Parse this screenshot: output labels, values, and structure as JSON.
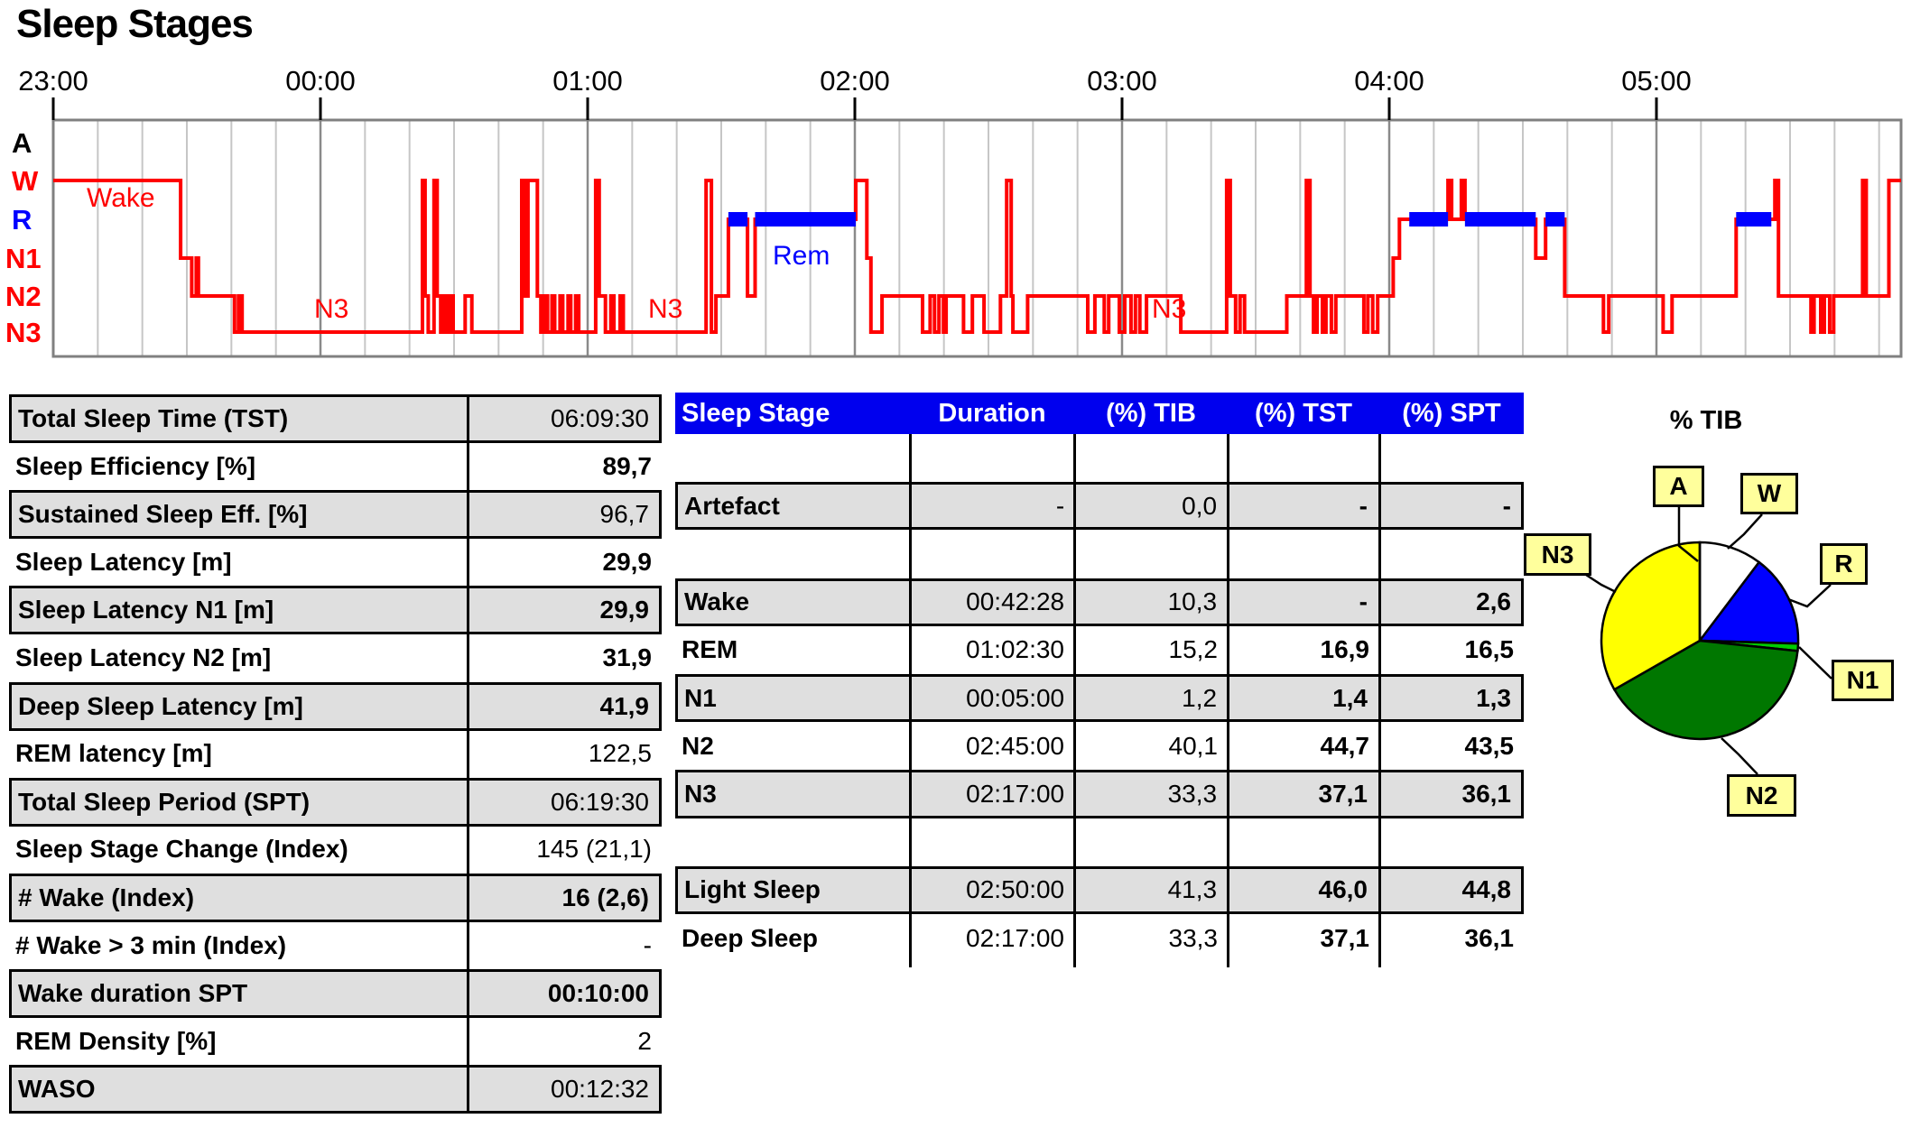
{
  "title": "Sleep Stages",
  "chart_data": [
    {
      "type": "line",
      "subtype": "hypnogram-step",
      "title": "Sleep Stages",
      "xlabel": "time",
      "x_unit": "minutes from 23:00",
      "x_range_min": [
        0,
        415
      ],
      "hour_ticks": [
        "23:00",
        "00:00",
        "01:00",
        "02:00",
        "03:00",
        "04:00",
        "05:00"
      ],
      "stage_axis": [
        {
          "label": "A",
          "color": "#000000"
        },
        {
          "label": "W",
          "color": "#FF0000"
        },
        {
          "label": "R",
          "color": "#0000FF"
        },
        {
          "label": "N1",
          "color": "#FF0000"
        },
        {
          "label": "N2",
          "color": "#FF0000"
        },
        {
          "label": "N3",
          "color": "#FF0000"
        }
      ],
      "trace_color": "#FF0000",
      "rem_color": "#0000FF",
      "grid_minor_min": 10,
      "series": [
        [
          0,
          "W"
        ],
        [
          28.6,
          "N1"
        ],
        [
          31.1,
          "N2"
        ],
        [
          32.1,
          "N1"
        ],
        [
          32.6,
          "N2"
        ],
        [
          40.7,
          "N3"
        ],
        [
          41.6,
          "N2"
        ],
        [
          42.4,
          "N3"
        ],
        [
          82.9,
          "W"
        ],
        [
          83.5,
          "N2"
        ],
        [
          84.2,
          "N3"
        ],
        [
          85.5,
          "W"
        ],
        [
          86.2,
          "N2"
        ],
        [
          87.0,
          "N3"
        ],
        [
          87.6,
          "N2"
        ],
        [
          88.4,
          "N3"
        ],
        [
          89.0,
          "N2"
        ],
        [
          89.8,
          "N3"
        ],
        [
          92.5,
          "N2"
        ],
        [
          94.0,
          "N3"
        ],
        [
          105.2,
          "W"
        ],
        [
          105.8,
          "N2"
        ],
        [
          106.6,
          "W"
        ],
        [
          108.7,
          "N2"
        ],
        [
          109.5,
          "N3"
        ],
        [
          110.3,
          "N2"
        ],
        [
          111.0,
          "N3"
        ],
        [
          112.0,
          "N2"
        ],
        [
          112.6,
          "N3"
        ],
        [
          113.8,
          "N2"
        ],
        [
          114.4,
          "N3"
        ],
        [
          115.6,
          "N2"
        ],
        [
          116.2,
          "N3"
        ],
        [
          117.3,
          "N2"
        ],
        [
          118.0,
          "N3"
        ],
        [
          121.8,
          "W"
        ],
        [
          122.6,
          "N2"
        ],
        [
          124.0,
          "N3"
        ],
        [
          125.2,
          "N2"
        ],
        [
          125.9,
          "N3"
        ],
        [
          127.3,
          "N2"
        ],
        [
          128.0,
          "N3"
        ],
        [
          146.6,
          "W"
        ],
        [
          147.8,
          "N3"
        ],
        [
          148.8,
          "N2"
        ],
        [
          151.6,
          "R"
        ],
        [
          155.9,
          "N2"
        ],
        [
          157.6,
          "R"
        ],
        [
          180.2,
          "W"
        ],
        [
          182.7,
          "N1"
        ],
        [
          183.6,
          "N3"
        ],
        [
          186.1,
          "N2"
        ],
        [
          195.2,
          "N3"
        ],
        [
          196.9,
          "N2"
        ],
        [
          197.9,
          "N3"
        ],
        [
          198.9,
          "N2"
        ],
        [
          199.9,
          "N3"
        ],
        [
          200.5,
          "N2"
        ],
        [
          204.4,
          "N3"
        ],
        [
          206.4,
          "N2"
        ],
        [
          209.0,
          "N3"
        ],
        [
          212.7,
          "N2"
        ],
        [
          214.1,
          "W"
        ],
        [
          215.1,
          "N2"
        ],
        [
          215.5,
          "N3"
        ],
        [
          218.8,
          "N2"
        ],
        [
          232.3,
          "N3"
        ],
        [
          233.9,
          "N2"
        ],
        [
          236.0,
          "N3"
        ],
        [
          237.0,
          "N2"
        ],
        [
          239.4,
          "N3"
        ],
        [
          240.6,
          "N2"
        ],
        [
          242.0,
          "N3"
        ],
        [
          243.0,
          "N2"
        ],
        [
          244.0,
          "N3"
        ],
        [
          245.5,
          "N2"
        ],
        [
          253.2,
          "N3"
        ],
        [
          263.5,
          "W"
        ],
        [
          264.3,
          "N2"
        ],
        [
          265.5,
          "N3"
        ],
        [
          266.5,
          "N2"
        ],
        [
          267.5,
          "N3"
        ],
        [
          277.0,
          "N2"
        ],
        [
          281.4,
          "W"
        ],
        [
          282.2,
          "N2"
        ],
        [
          283.0,
          "N3"
        ],
        [
          283.8,
          "N2"
        ],
        [
          285.0,
          "N3"
        ],
        [
          285.8,
          "N2"
        ],
        [
          287.0,
          "N3"
        ],
        [
          288.0,
          "N2"
        ],
        [
          294.3,
          "N3"
        ],
        [
          295.2,
          "N2"
        ],
        [
          296.3,
          "N3"
        ],
        [
          297.4,
          "N2"
        ],
        [
          300.9,
          "N1"
        ],
        [
          302.3,
          "R"
        ],
        [
          313.2,
          "W"
        ],
        [
          314.0,
          "R"
        ],
        [
          316.2,
          "W"
        ],
        [
          317.0,
          "R"
        ],
        [
          332.9,
          "N1"
        ],
        [
          335.1,
          "R"
        ],
        [
          339.4,
          "N2"
        ],
        [
          348.1,
          "N3"
        ],
        [
          349.3,
          "N2"
        ],
        [
          361.5,
          "N3"
        ],
        [
          363.5,
          "N2"
        ],
        [
          377.9,
          "R"
        ],
        [
          386.6,
          "W"
        ],
        [
          387.4,
          "N2"
        ],
        [
          394.7,
          "N3"
        ],
        [
          395.4,
          "N2"
        ],
        [
          396.9,
          "N3"
        ],
        [
          397.7,
          "N2"
        ],
        [
          398.9,
          "N3"
        ],
        [
          399.8,
          "N2"
        ],
        [
          406.3,
          "W"
        ],
        [
          407.1,
          "N2"
        ],
        [
          412.2,
          "W"
        ]
      ],
      "rem_bars_min": [
        [
          151.6,
          155.9
        ],
        [
          157.6,
          180.2
        ],
        [
          304.5,
          313.2
        ],
        [
          317.0,
          332.9
        ],
        [
          335.1,
          339.4
        ],
        [
          377.9,
          385.8
        ]
      ],
      "annotations": [
        {
          "text": "Wake",
          "color": "#FF0000",
          "x": 96,
          "y": 229
        },
        {
          "text": "N3",
          "color": "#FF0000",
          "x": 348,
          "y": 352
        },
        {
          "text": "Rem",
          "color": "#0000FF",
          "x": 856,
          "y": 293
        },
        {
          "text": "N3",
          "color": "#FF0000",
          "x": 718,
          "y": 352
        },
        {
          "text": "N3",
          "color": "#FF0000",
          "x": 1276,
          "y": 352
        }
      ]
    },
    {
      "type": "pie",
      "title": "% TIB",
      "labels": [
        "A",
        "W",
        "R",
        "N1",
        "N2",
        "N3"
      ],
      "values": [
        0,
        10.3,
        15.2,
        1.2,
        40.1,
        33.3
      ],
      "colors": [
        "#FFFFFF",
        "#FFFFFF",
        "#0000FF",
        "#00CC00",
        "#007700",
        "#FFFF00"
      ],
      "start_angle_deg_from_north": 0,
      "direction": "clockwise",
      "callout_box_color": "#FFFF9C"
    }
  ],
  "summary_table": {
    "rows": [
      {
        "label": "Total Sleep Time (TST)",
        "value": "06:09:30",
        "bold": false,
        "shaded": true
      },
      {
        "label": "Sleep Efficiency [%]",
        "value": "89,7",
        "bold": true,
        "shaded": false
      },
      {
        "label": "Sustained Sleep Eff. [%]",
        "value": "96,7",
        "bold": false,
        "shaded": true
      },
      {
        "label": "Sleep Latency [m]",
        "value": "29,9",
        "bold": true,
        "shaded": false
      },
      {
        "label": "Sleep Latency N1 [m]",
        "value": "29,9",
        "bold": true,
        "shaded": true
      },
      {
        "label": "Sleep Latency N2 [m]",
        "value": "31,9",
        "bold": true,
        "shaded": false
      },
      {
        "label": "Deep Sleep Latency [m]",
        "value": "41,9",
        "bold": true,
        "shaded": true
      },
      {
        "label": "REM latency [m]",
        "value": "122,5",
        "bold": false,
        "shaded": false
      },
      {
        "label": "Total Sleep Period (SPT)",
        "value": "06:19:30",
        "bold": false,
        "shaded": true
      },
      {
        "label": "Sleep Stage Change (Index)",
        "value": "145 (21,1)",
        "bold": false,
        "shaded": false
      },
      {
        "label": "# Wake (Index)",
        "value": "16 (2,6)",
        "bold": true,
        "shaded": true
      },
      {
        "label": "# Wake > 3 min (Index)",
        "value": "-",
        "bold": false,
        "shaded": false
      },
      {
        "label": "Wake duration SPT",
        "value": "00:10:00",
        "bold": true,
        "shaded": true
      },
      {
        "label": "REM Density [%]",
        "value": "2",
        "bold": false,
        "shaded": false
      },
      {
        "label": "WASO",
        "value": "00:12:32",
        "bold": false,
        "shaded": true
      }
    ]
  },
  "stage_table": {
    "header_bg": "#0000EE",
    "headers": [
      "Sleep Stage",
      "Duration",
      "(%) TIB",
      "(%) TST",
      "(%) SPT"
    ],
    "rows": [
      {
        "empty": true
      },
      {
        "name": "Artefact",
        "duration": "-",
        "tib": "0,0",
        "tst": "-",
        "spt": "-",
        "shaded": true
      },
      {
        "empty": true
      },
      {
        "name": "Wake",
        "duration": "00:42:28",
        "tib": "10,3",
        "tst": "-",
        "spt": "2,6",
        "shaded": true
      },
      {
        "name": "REM",
        "duration": "01:02:30",
        "tib": "15,2",
        "tst": "16,9",
        "spt": "16,5",
        "shaded": false
      },
      {
        "name": "N1",
        "duration": "00:05:00",
        "tib": "1,2",
        "tst": "1,4",
        "spt": "1,3",
        "shaded": true
      },
      {
        "name": "N2",
        "duration": "02:45:00",
        "tib": "40,1",
        "tst": "44,7",
        "spt": "43,5",
        "shaded": false
      },
      {
        "name": "N3",
        "duration": "02:17:00",
        "tib": "33,3",
        "tst": "37,1",
        "spt": "36,1",
        "shaded": true
      },
      {
        "empty": true
      },
      {
        "name": "Light Sleep",
        "duration": "02:50:00",
        "tib": "41,3",
        "tst": "46,0",
        "spt": "44,8",
        "shaded": true
      },
      {
        "name": "Deep Sleep",
        "duration": "02:17:00",
        "tib": "33,3",
        "tst": "37,1",
        "spt": "36,1",
        "shaded": false
      }
    ]
  }
}
